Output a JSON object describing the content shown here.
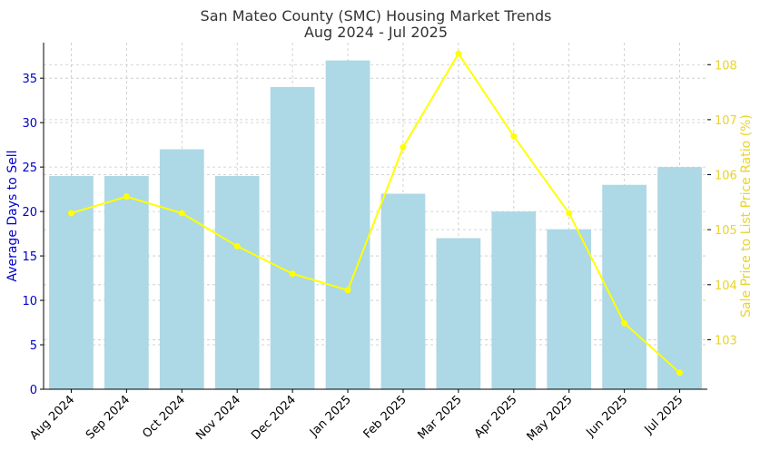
{
  "chart_data": {
    "type": "bar",
    "title": "San Mateo County (SMC) Housing Market Trends",
    "subtitle": "Aug 2024 - Jul 2025",
    "categories": [
      "Aug 2024",
      "Sep 2024",
      "Oct 2024",
      "Nov 2024",
      "Dec 2024",
      "Jan 2025",
      "Feb 2025",
      "Mar 2025",
      "Apr 2025",
      "May 2025",
      "Jun 2025",
      "Jul 2025"
    ],
    "series": [
      {
        "type": "bar",
        "axis": "left",
        "values": [
          24,
          24,
          27,
          24,
          34,
          37,
          22,
          17,
          20,
          18,
          23,
          25
        ],
        "color": "#add8e6"
      },
      {
        "type": "line",
        "axis": "right",
        "values": [
          105.3,
          105.6,
          105.3,
          104.7,
          104.2,
          103.9,
          106.5,
          108.2,
          106.7,
          105.3,
          103.3,
          102.4
        ],
        "color": "#ffff00",
        "marker": "circle"
      }
    ],
    "ylabel": "Average Days to Sell",
    "ylabel_color": "#0000cd",
    "ylim": [
      0,
      39
    ],
    "yticks": [
      0,
      5,
      10,
      15,
      20,
      25,
      30,
      35
    ],
    "y2label": "Sale Price to List Price Ratio (%)",
    "y2label_color": "#e8d42a",
    "y2lim": [
      102.1,
      108.4
    ],
    "y2ticks": [
      103,
      104,
      105,
      106,
      107,
      108
    ],
    "grid": true,
    "legend": "none"
  }
}
